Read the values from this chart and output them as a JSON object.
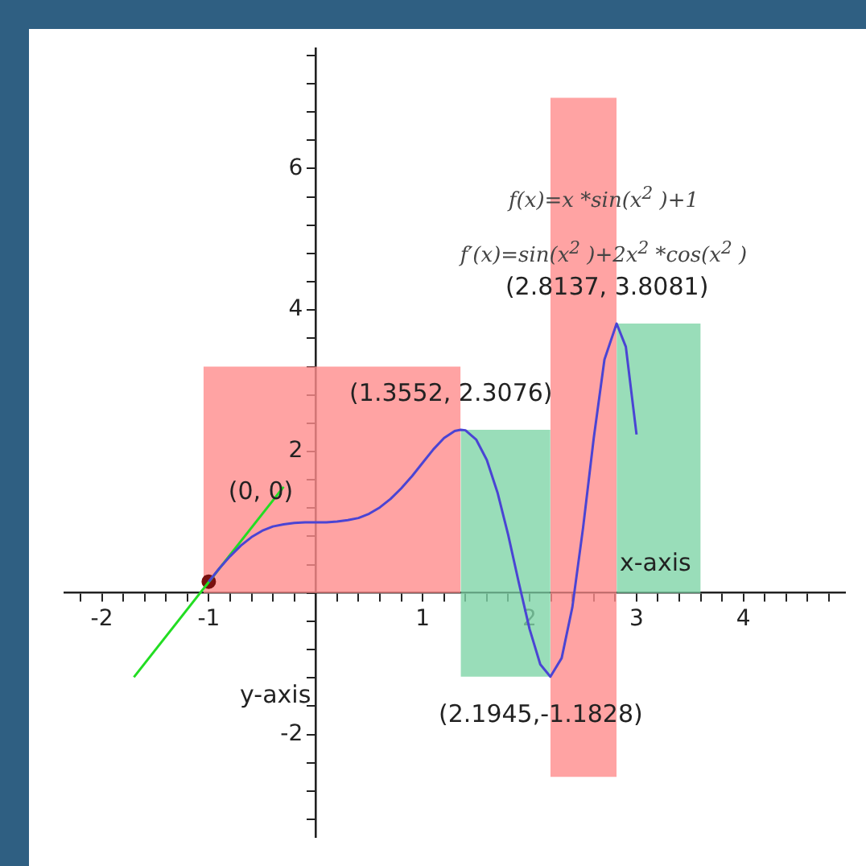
{
  "chart_data": {
    "type": "line",
    "xlabel": "x-axis",
    "ylabel": "y-axis",
    "xlim": [
      -2.35,
      4.95
    ],
    "ylim": [
      -3.45,
      7.7
    ],
    "grid": false,
    "legend": false,
    "marker": "none",
    "line_style": "solid",
    "xticks": [
      {
        "value": -2.2,
        "label": null
      },
      -2,
      {
        "value": -1.8,
        "label": null
      },
      {
        "value": -1.6,
        "label": null
      },
      {
        "value": -1.4,
        "label": null
      },
      {
        "value": -1.2,
        "label": null
      },
      -1,
      {
        "value": -0.8,
        "label": null
      },
      {
        "value": -0.6,
        "label": null
      },
      {
        "value": -0.4,
        "label": null
      },
      {
        "value": -0.2,
        "label": null
      },
      {
        "value": 0,
        "label": null
      },
      {
        "value": 0.2,
        "label": null
      },
      {
        "value": 0.4,
        "label": null
      },
      {
        "value": 0.6,
        "label": null
      },
      {
        "value": 0.8,
        "label": null
      },
      1,
      {
        "value": 1.2,
        "label": null
      },
      {
        "value": 1.4,
        "label": null
      },
      {
        "value": 1.6,
        "label": null
      },
      {
        "value": 1.8,
        "label": null
      },
      2,
      {
        "value": 2.2,
        "label": null
      },
      {
        "value": 2.4,
        "label": null
      },
      {
        "value": 2.6,
        "label": null
      },
      {
        "value": 2.8,
        "label": null
      },
      3,
      {
        "value": 3.2,
        "label": null
      },
      {
        "value": 3.4,
        "label": null
      },
      {
        "value": 3.6,
        "label": null
      },
      {
        "value": 3.8,
        "label": null
      },
      4,
      {
        "value": 4.2,
        "label": null
      },
      {
        "value": 4.4,
        "label": null
      },
      {
        "value": 4.6,
        "label": null
      },
      {
        "value": 4.8,
        "label": null
      }
    ],
    "yticks": [
      {
        "value": -3.2,
        "label": null
      },
      {
        "value": -2.8,
        "label": null
      },
      {
        "value": -2.4,
        "label": null
      },
      -2,
      {
        "value": -1.6,
        "label": null
      },
      {
        "value": -1.2,
        "label": null
      },
      {
        "value": -0.8,
        "label": null
      },
      {
        "value": -0.4,
        "label": null
      },
      {
        "value": 0,
        "label": null
      },
      {
        "value": 0.4,
        "label": null
      },
      {
        "value": 0.8,
        "label": null
      },
      {
        "value": 1.2,
        "label": null
      },
      {
        "value": 1.6,
        "label": null
      },
      2,
      {
        "value": 2.4,
        "label": null
      },
      {
        "value": 2.8,
        "label": null
      },
      {
        "value": 3.2,
        "label": null
      },
      {
        "value": 3.6,
        "label": null
      },
      4,
      {
        "value": 4.4,
        "label": null
      },
      {
        "value": 4.8,
        "label": null
      },
      {
        "value": 5.2,
        "label": null
      },
      {
        "value": 5.6,
        "label": null
      },
      6,
      {
        "value": 6.4,
        "label": null
      },
      {
        "value": 6.8,
        "label": null
      },
      {
        "value": 7.2,
        "label": null
      },
      {
        "value": 7.6,
        "label": null
      }
    ],
    "series": [
      {
        "color": "#4a44d4",
        "x": [
          -1,
          -0.9,
          -0.8,
          -0.7,
          -0.6,
          -0.5,
          -0.4,
          -0.3,
          -0.2,
          -0.1,
          0,
          0.1,
          0.2,
          0.3,
          0.4,
          0.5,
          0.6,
          0.7,
          0.8,
          0.9,
          1,
          1.1,
          1.2,
          1.3,
          1.3552,
          1.4,
          1.5,
          1.6,
          1.7,
          1.8,
          1.9,
          2,
          2.1,
          2.1945,
          2.3,
          2.4,
          2.5,
          2.6,
          2.7,
          2.8137,
          2.9,
          3
        ],
        "values": [
          0.16,
          0.35,
          0.52,
          0.67,
          0.79,
          0.88,
          0.94,
          0.97,
          0.99,
          1,
          1,
          1,
          1.01,
          1.03,
          1.06,
          1.12,
          1.21,
          1.33,
          1.48,
          1.65,
          1.84,
          2.03,
          2.19,
          2.29,
          2.3076,
          2.3,
          2.17,
          1.88,
          1.42,
          0.82,
          0.14,
          -0.51,
          -1.01,
          -1.1828,
          -0.92,
          -0.2,
          0.92,
          2.19,
          3.3,
          3.8081,
          3.48,
          2.24
        ]
      },
      {
        "type": "line",
        "color": "#22dd22",
        "x": [
          -1.7,
          -0.3
        ],
        "values": [
          -1.19,
          1.5
        ]
      },
      {
        "type": "scatter",
        "color": "#7a1010",
        "marker": "circle",
        "x": [
          -1
        ],
        "values": [
          0.16
        ]
      },
      {
        "type": "area",
        "color": "#ff8c8c",
        "x": [
          -1.05,
          1.3552
        ],
        "values": [
          3.2,
          3.2
        ]
      },
      {
        "type": "area",
        "color": "#7fd4a8",
        "x": [
          1.3552,
          2.1945
        ],
        "values": [
          2.3076,
          2.3076
        ]
      },
      {
        "type": "area",
        "color": "#7fd4a8",
        "x": [
          1.3552,
          2.1945
        ],
        "values": [
          -1.1828,
          -1.1828
        ]
      },
      {
        "type": "area",
        "color": "#ff8c8c",
        "x": [
          2.1945,
          2.8137
        ],
        "values": [
          7,
          7
        ]
      },
      {
        "type": "area",
        "color": "#ff8c8c",
        "x": [
          2.1945,
          2.8137
        ],
        "values": [
          -2.6,
          -2.6
        ]
      },
      {
        "type": "area",
        "color": "#7fd4a8",
        "x": [
          2.8137,
          3.6
        ],
        "values": [
          3.8081,
          3.8081
        ]
      }
    ],
    "annotations": [
      "f(x)=x *sin(x$^{2}$ )+1",
      "f′(x)=sin(x$^{2}$ )+2x$^{2}$ *cos(x$^{2}$ )",
      "(0, 0)",
      {
        "text": "(1.3552, 2.3076)",
        "x": 1.3552,
        "y": 2.3076
      },
      {
        "text": "(2.8137, 3.8081)",
        "x": 2.8137,
        "y": 3.8081
      },
      {
        "text": "(2.1945,-1.1828)",
        "x": 2.1945,
        "y": -1.1828
      }
    ]
  }
}
